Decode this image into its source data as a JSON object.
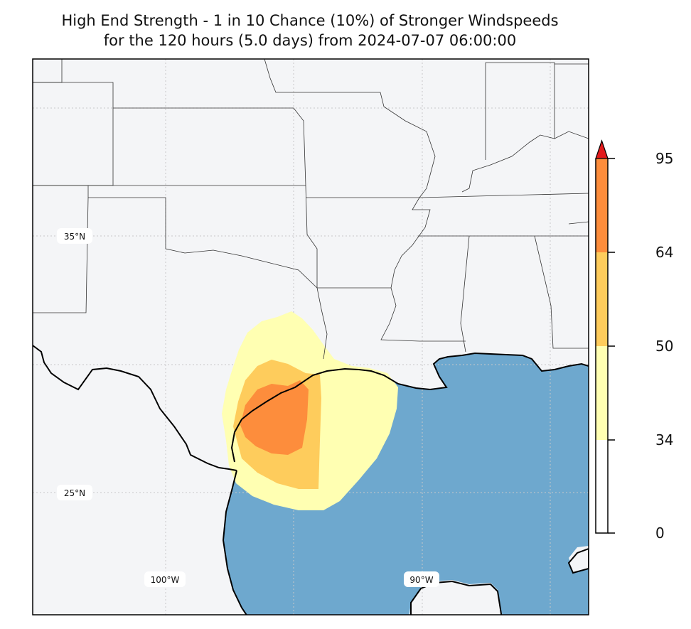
{
  "title": {
    "line1": "High End Strength - 1 in 10 Chance (10%) of Stronger Windspeeds",
    "line2": "for the 120 hours (5.0 days) from 2024-07-07 06:00:00"
  },
  "map": {
    "gridline_labels": {
      "lat_35": "35°N",
      "lat_25": "25°N",
      "lon_100": "100°W",
      "lon_90": "90°W"
    },
    "colors": {
      "land": "#f4f5f7",
      "ocean": "#6ea8ce",
      "coast": "#000000",
      "borders": "#333333",
      "grid": "#bbbbbb"
    }
  },
  "colorbar": {
    "ticks": [
      "95",
      "64",
      "50",
      "34",
      "0"
    ],
    "bands": [
      {
        "from": 0,
        "to": 34,
        "color": "#ffffff"
      },
      {
        "from": 34,
        "to": 50,
        "color": "#ffffb2"
      },
      {
        "from": 50,
        "to": 64,
        "color": "#fecc5c"
      },
      {
        "from": 64,
        "to": 95,
        "color": "#fd8d3c"
      }
    ],
    "extend_color": "#e31a1c"
  },
  "wind_field": {
    "levels": [
      {
        "min": 34,
        "color": "#ffffb2"
      },
      {
        "min": 50,
        "color": "#fecc5c"
      },
      {
        "min": 64,
        "color": "#fd8d3c"
      }
    ]
  }
}
